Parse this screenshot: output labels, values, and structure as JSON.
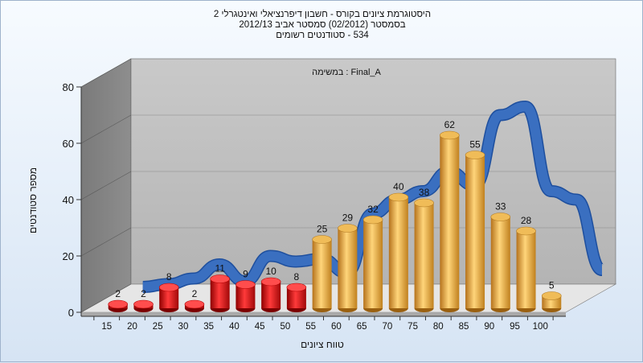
{
  "chart_data": {
    "type": "bar",
    "title_lines": [
      "היסטוגרמת ציונים בקורס - חשבון דיפרנציאלי ואינטגרלי 2",
      "בסמסטר  (02/2012)  סמסטר אביב 2012/13",
      "534 - סטודנטים רשומים"
    ],
    "inner_label": "במשימה : Final_A",
    "xlabel": "טווח ציונים",
    "ylabel": "מספר סטודנטים",
    "ylim": [
      0,
      80
    ],
    "yticks": [
      0,
      20,
      40,
      60,
      80
    ],
    "categories": [
      "15",
      "20",
      "25",
      "30",
      "35",
      "40",
      "45",
      "50",
      "55",
      "60",
      "65",
      "70",
      "75",
      "80",
      "85",
      "90",
      "95",
      "100"
    ],
    "values": [
      2,
      2,
      8,
      2,
      11,
      9,
      10,
      8,
      25,
      29,
      32,
      40,
      38,
      62,
      55,
      33,
      28,
      5
    ],
    "bar_colors": {
      "below_passing": "#e01818",
      "passing": "#e8a838"
    },
    "below_passing_count": 8,
    "trend_line": {
      "color": "#3a6fc0",
      "values": [
        4,
        5,
        7,
        12,
        6,
        15,
        13,
        14,
        9,
        30,
        35,
        38,
        45,
        40,
        65,
        68,
        38,
        35,
        10
      ]
    },
    "grid": true,
    "legend": "none"
  }
}
